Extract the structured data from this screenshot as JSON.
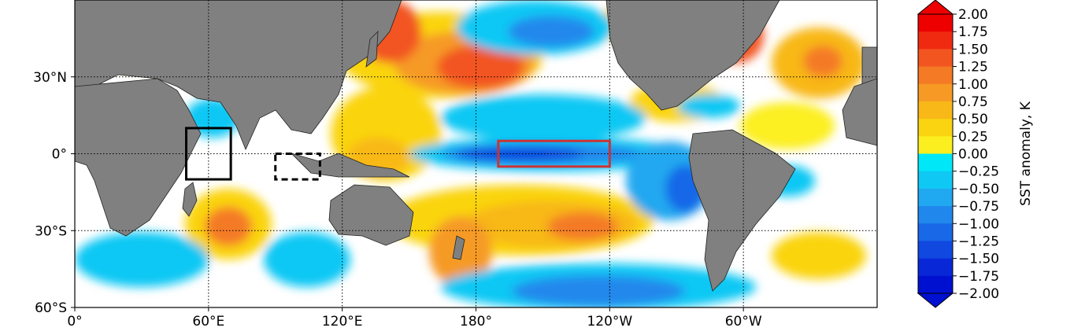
{
  "map": {
    "projection": "PlateCarree",
    "extent": {
      "lon": [
        0,
        360
      ],
      "lat": [
        -60,
        60
      ]
    },
    "gridlines": true,
    "xticks": [
      {
        "lon": 0,
        "label": "0°"
      },
      {
        "lon": 60,
        "label": "60°E"
      },
      {
        "lon": 120,
        "label": "120°E"
      },
      {
        "lon": 180,
        "label": "180°"
      },
      {
        "lon": 240,
        "label": "120°W"
      },
      {
        "lon": 300,
        "label": "60°W"
      }
    ],
    "yticks": [
      {
        "lat": 30,
        "label": "30°N"
      },
      {
        "lat": 0,
        "label": "0°"
      },
      {
        "lat": -30,
        "label": "30°S"
      },
      {
        "lat": -60,
        "label": "60°S"
      }
    ],
    "boxes": [
      {
        "name": "western-indian-ocean-box",
        "lon": [
          50,
          70
        ],
        "lat": [
          -10,
          10
        ],
        "style": "solid",
        "color": "#000000"
      },
      {
        "name": "eastern-indian-ocean-box",
        "lon": [
          90,
          110
        ],
        "lat": [
          -10,
          0
        ],
        "style": "dashed",
        "color": "#000000"
      },
      {
        "name": "nino34-box",
        "lon": [
          190,
          240
        ],
        "lat": [
          -5,
          5
        ],
        "style": "solid",
        "color": "#cc3333"
      }
    ],
    "colors": {
      "land": "#808080",
      "grid": "#000000"
    }
  },
  "colorbar": {
    "label": "SST anomaly, K",
    "ticks": [
      "2.00",
      "1.75",
      "1.50",
      "1.25",
      "1.00",
      "0.75",
      "0.50",
      "0.25",
      "0.00",
      "−0.25",
      "−0.50",
      "−0.75",
      "−1.00",
      "−1.25",
      "−1.50",
      "−1.75",
      "−2.00"
    ],
    "colors": [
      "#ee0000",
      "#f02a10",
      "#f25520",
      "#f47a25",
      "#f69a25",
      "#f8b818",
      "#fad410",
      "#fcef20",
      "#ffffff",
      "#00e8f8",
      "#10c8f4",
      "#20a8f0",
      "#2088ec",
      "#1868e8",
      "#1048e0",
      "#0828d8",
      "#0010d0"
    ]
  }
}
